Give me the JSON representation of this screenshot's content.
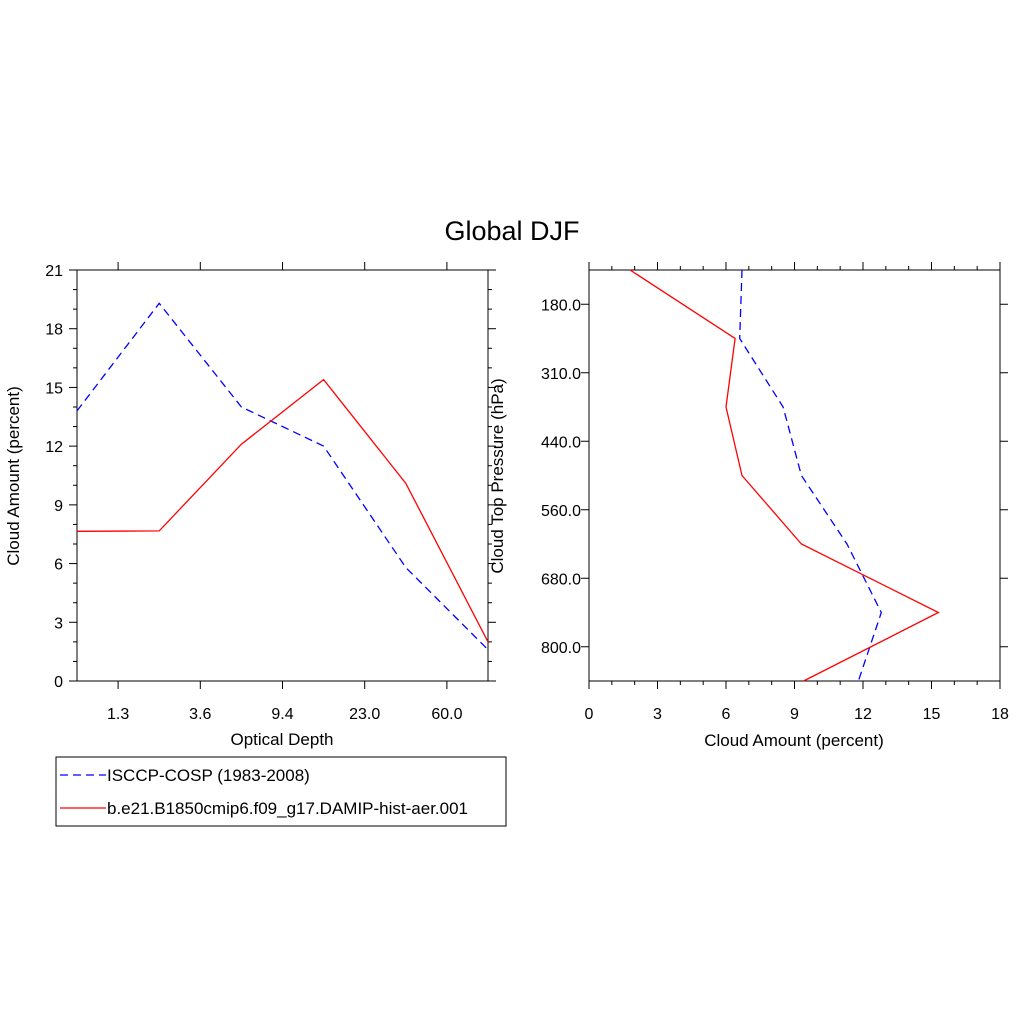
{
  "figure": {
    "title": "Global DJF"
  },
  "colors": {
    "obs": "#0000ff",
    "model": "#ff0000",
    "axis": "#000000"
  },
  "chart_data": [
    {
      "type": "line",
      "xlabel": "Optical Depth",
      "ylabel": "Cloud Amount (percent)",
      "ylim": [
        0,
        21
      ],
      "yticks": [
        "0",
        "3",
        "6",
        "9",
        "12",
        "15",
        "18",
        "21"
      ],
      "xtick_labels": [
        "1.3",
        "3.6",
        "9.4",
        "23.0",
        "60.0"
      ],
      "x": [
        0,
        1,
        2,
        3,
        4,
        5
      ],
      "series": [
        {
          "name": "ISCCP-COSP (1983-2008)",
          "style": "dashed",
          "values": [
            13.8,
            19.3,
            14.0,
            12.0,
            5.8,
            1.6
          ]
        },
        {
          "name": "b.e21.B1850cmip6.f09_g17.DAMIP-hist-aer.001",
          "style": "solid",
          "values": [
            7.65,
            7.67,
            12.1,
            15.4,
            10.1,
            2.0
          ]
        }
      ],
      "legend": "below-left"
    },
    {
      "type": "line",
      "xlabel": "Cloud Amount (percent)",
      "ylabel": "Cloud Top Pressure (hPa)",
      "xlim": [
        0,
        18
      ],
      "xticks": [
        "0",
        "3",
        "6",
        "9",
        "12",
        "15",
        "18"
      ],
      "ytick_labels": [
        "180.0",
        "310.0",
        "440.0",
        "560.0",
        "680.0",
        "800.0"
      ],
      "y": [
        0,
        1,
        2,
        3,
        4,
        5,
        6
      ],
      "series": [
        {
          "name": "ISCCP-COSP (1983-2008)",
          "style": "dashed",
          "values": [
            6.7,
            6.6,
            8.5,
            9.3,
            11.3,
            12.8,
            11.8
          ]
        },
        {
          "name": "b.e21.B1850cmip6.f09_g17.DAMIP-hist-aer.001",
          "style": "solid",
          "values": [
            1.8,
            6.4,
            6.0,
            6.7,
            9.3,
            15.3,
            9.4
          ]
        }
      ]
    }
  ]
}
